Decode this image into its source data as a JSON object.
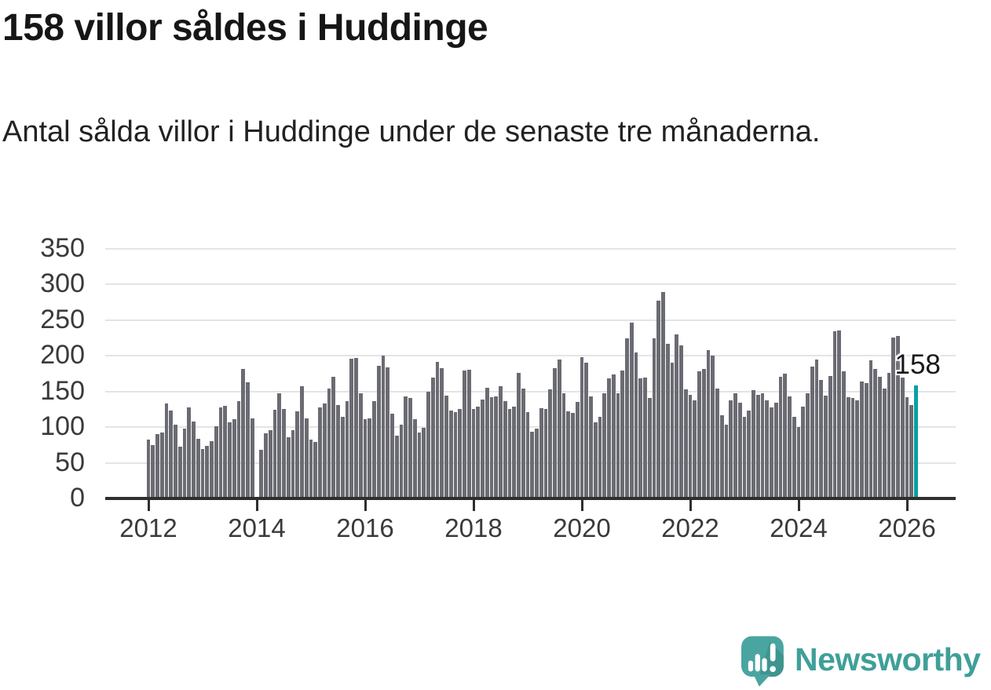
{
  "header": {
    "title": "158 villor såldes i Huddinge",
    "subtitle": "Antal sålda villor i Huddinge under de senaste tre månaderna."
  },
  "chart_data": {
    "type": "bar",
    "title": "158 villor såldes i Huddinge",
    "xlabel": "",
    "ylabel": "",
    "ylim": [
      0,
      350
    ],
    "yticks": [
      0,
      50,
      100,
      150,
      200,
      250,
      300,
      350
    ],
    "xticks": [
      2012,
      2014,
      2016,
      2018,
      2020,
      2022,
      2024,
      2026
    ],
    "grid": true,
    "legend": "none",
    "x_start_month": "2012-01",
    "x_end_month": "2026-03",
    "annotation": {
      "label": "158",
      "value": 158
    },
    "highlight_last_bar": true,
    "values": [
      83,
      75,
      90,
      92,
      133,
      123,
      104,
      73,
      98,
      128,
      108,
      84,
      69,
      74,
      80,
      101,
      128,
      130,
      107,
      111,
      137,
      182,
      163,
      112,
      0,
      68,
      91,
      96,
      124,
      147,
      125,
      86,
      96,
      122,
      157,
      112,
      83,
      79,
      128,
      133,
      154,
      171,
      131,
      115,
      137,
      196,
      197,
      147,
      111,
      112,
      136,
      186,
      200,
      184,
      119,
      88,
      103,
      143,
      141,
      111,
      93,
      99,
      150,
      170,
      191,
      183,
      144,
      123,
      121,
      126,
      179,
      181,
      125,
      129,
      139,
      155,
      142,
      143,
      157,
      137,
      126,
      129,
      176,
      154,
      121,
      94,
      98,
      127,
      126,
      153,
      183,
      195,
      147,
      122,
      120,
      135,
      198,
      190,
      143,
      107,
      115,
      147,
      168,
      174,
      148,
      179,
      225,
      246,
      205,
      168,
      170,
      141,
      224,
      277,
      290,
      217,
      190,
      230,
      215,
      153,
      145,
      138,
      178,
      182,
      208,
      200,
      154,
      117,
      104,
      138,
      147,
      134,
      115,
      123,
      152,
      145,
      148,
      138,
      128,
      134,
      171,
      175,
      143,
      114,
      100,
      129,
      147,
      185,
      195,
      166,
      144,
      172,
      234,
      236,
      178,
      142,
      141,
      138,
      164,
      162,
      194,
      182,
      171,
      154,
      176,
      226,
      228,
      170,
      142,
      131,
      158
    ]
  },
  "footer": {
    "brand": "Newsworthy"
  },
  "colors": {
    "bar": "#6b6b73",
    "highlight": "#0aa0a0",
    "gridline": "#e4e4e4",
    "axis": "#2f2f2f",
    "title_text": "#161616",
    "body_text": "#222222",
    "tick_text": "#3a3a3a",
    "brand_teal": "#3f9f99",
    "logo_bubble": "#4aa5a0",
    "logo_bubble_shade": "#3e948f"
  }
}
